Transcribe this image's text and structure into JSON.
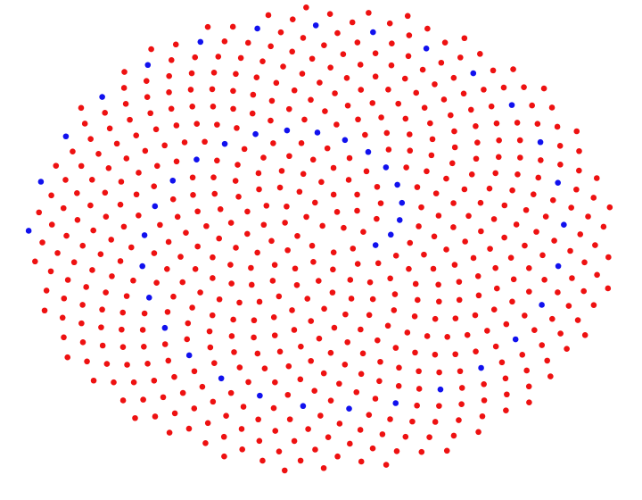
{
  "figure": {
    "description_kind": "phyllotaxis-dot-pattern",
    "background": "#ffffff",
    "dot_count": 600,
    "golden_angle_deg": 137.50776405,
    "colors": {
      "primary": "#ee1111",
      "accent": "#1111ee"
    },
    "accent_every": 13,
    "accent_offset": 5,
    "shape": "ellipse",
    "axis_ratio": 0.8
  }
}
